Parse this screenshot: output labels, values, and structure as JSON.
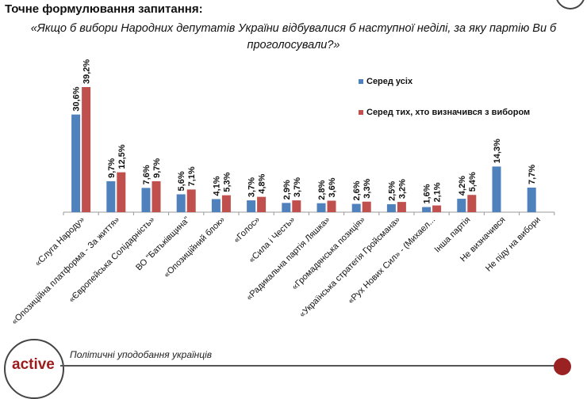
{
  "header": {
    "title": "Точне формулювання запитання:",
    "question": "«Якщо б вибори Народних депутатів України відбувалися б наступної неділі, за яку партію Ви б проголосували?»"
  },
  "footer": {
    "logo_text": "active",
    "caption": "Політичні уподобання українців"
  },
  "chart_data": {
    "type": "bar",
    "categories": [
      "«Слуга Народу»",
      "«Опозиційна платформа - За життя»",
      "«Європейська Солідарність»",
      "ВО \"Батьківщина\"",
      "«Опозиційний блок»",
      "«Голос»",
      "«Сила і Честь»",
      "«Радикальна партія Ляшка»",
      "«Громадянська позиція»",
      "«Українська стратегія Гройсмана»",
      "«Рух Нових Сил» - (Михаел...",
      "Інша партія",
      "Не визначився",
      "Не піду на вибори"
    ],
    "series": [
      {
        "name": "Серед усіх",
        "color": "#4f81bd",
        "values": [
          30.6,
          9.7,
          7.6,
          5.6,
          4.1,
          3.7,
          2.9,
          2.8,
          2.6,
          2.5,
          1.6,
          4.2,
          14.3,
          7.7
        ],
        "labels": [
          "30,6%",
          "9,7%",
          "7,6%",
          "5,6%",
          "4,1%",
          "3,7%",
          "2,9%",
          "2,8%",
          "2,6%",
          "2,5%",
          "1,6%",
          "4,2%",
          "14,3%",
          "7,7%"
        ]
      },
      {
        "name": "Серед тих, хто визначився з вибором",
        "color": "#c0504d",
        "values": [
          39.2,
          12.5,
          9.7,
          7.1,
          5.3,
          4.8,
          3.7,
          3.6,
          3.3,
          3.2,
          2.1,
          5.4,
          null,
          null
        ],
        "labels": [
          "39,2%",
          "12,5%",
          "9,7%",
          "7,1%",
          "5,3%",
          "4,8%",
          "3,7%",
          "3,6%",
          "3,3%",
          "3,2%",
          "2,1%",
          "5,4%",
          null,
          null
        ]
      }
    ],
    "ylim": [
      0,
      40
    ],
    "legend": "top-right",
    "grid": false
  }
}
